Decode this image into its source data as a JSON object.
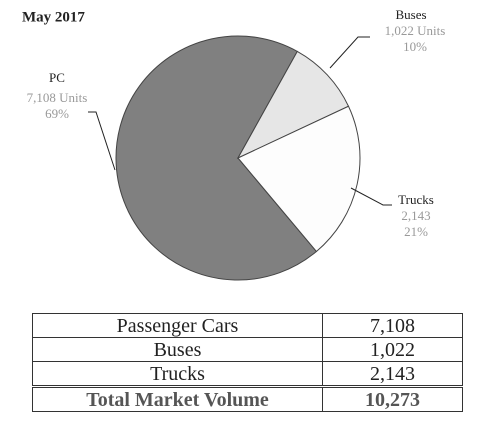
{
  "chart_data": {
    "type": "pie",
    "title": "May 2017",
    "categories": [
      "PC",
      "Buses",
      "Trucks"
    ],
    "values": [
      7108,
      1022,
      2143
    ],
    "value_labels": [
      "7,108 Units",
      "1,022 Units",
      "2,143"
    ],
    "percent_labels": [
      "69%",
      "10%",
      "21%"
    ],
    "colors": [
      "#808080",
      "#e6e6e6",
      "#fdfdfd"
    ]
  },
  "table": {
    "rows": [
      [
        "Passenger Cars",
        "7,108"
      ],
      [
        "Buses",
        "1,022"
      ],
      [
        "Trucks",
        "2,143"
      ]
    ],
    "total": [
      "Total Market Volume",
      "10,273"
    ]
  }
}
